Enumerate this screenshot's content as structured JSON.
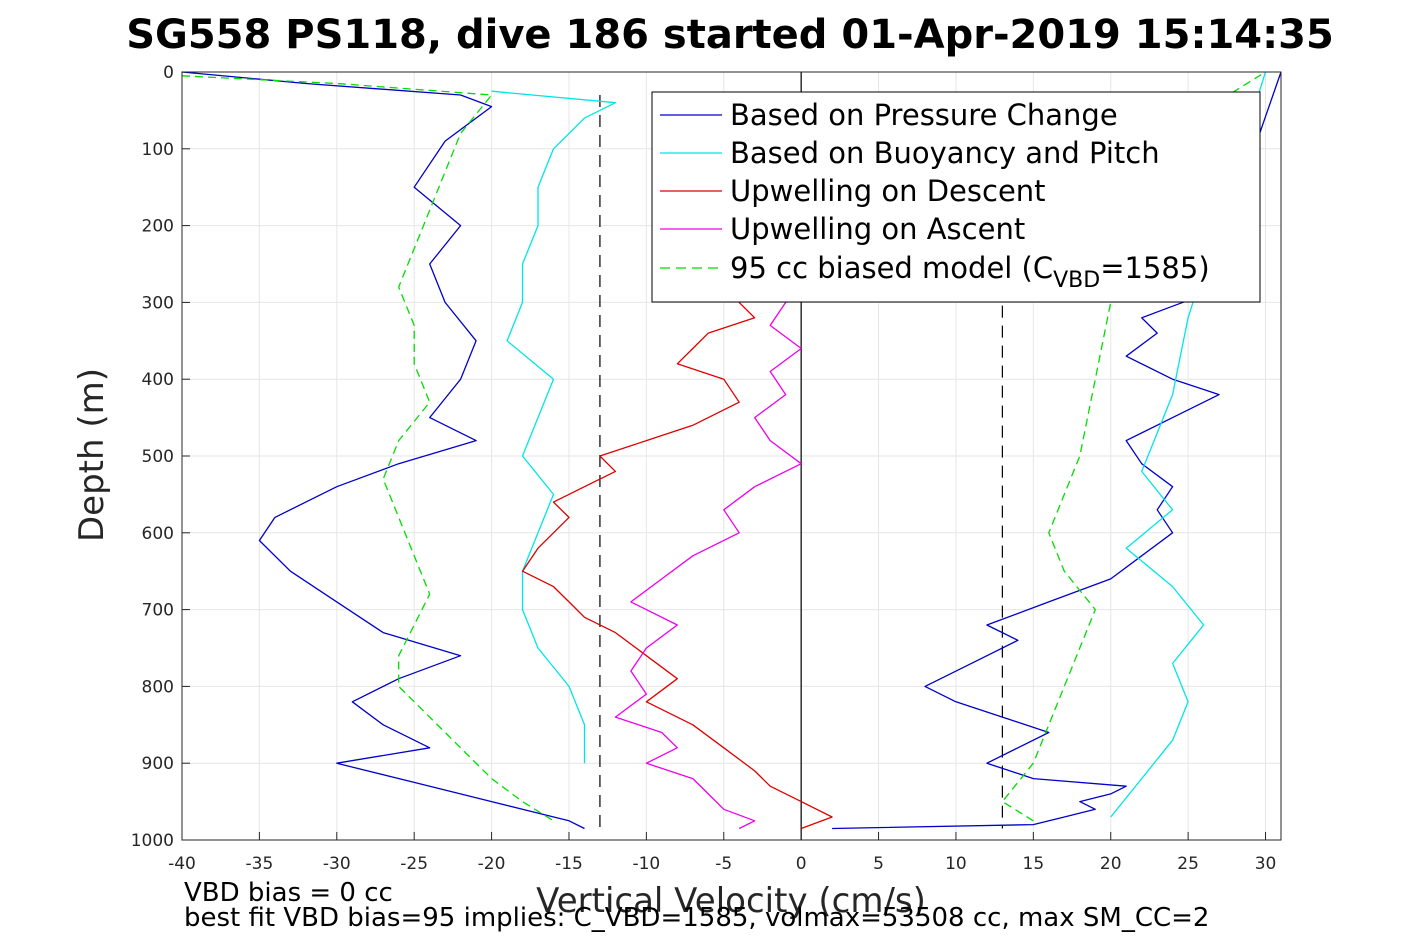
{
  "colors": {
    "pressure": "#0000cc",
    "buoyancy": "#00e5e5",
    "descent": "#e00000",
    "ascent": "#ee00ee",
    "model": "#00dd00",
    "grid": "#e6e6e6",
    "axis": "#262626",
    "reference": "#000000"
  },
  "chart_data": {
    "type": "line",
    "title": "SG558 PS118, dive 186 started 01-Apr-2019 15:14:35",
    "xlabel": "Vertical Velocity (cm/s)",
    "ylabel": "Depth (m)",
    "xlim": [
      -40,
      31
    ],
    "ylim": [
      0,
      1000
    ],
    "y_reversed": true,
    "grid": true,
    "legend_position": "top-right",
    "xticks": [
      -40,
      -35,
      -30,
      -25,
      -20,
      -15,
      -10,
      -5,
      0,
      5,
      10,
      15,
      20,
      25,
      30
    ],
    "yticks": [
      0,
      100,
      200,
      300,
      400,
      500,
      600,
      700,
      800,
      900,
      1000
    ],
    "reference_lines": [
      {
        "x": -13,
        "style": "dashed",
        "y_from": 30,
        "y_to": 985
      },
      {
        "x": 0,
        "style": "solid",
        "y_from": 0,
        "y_to": 1000
      },
      {
        "x": 13,
        "style": "dashed",
        "y_from": 200,
        "y_to": 985
      }
    ],
    "legend": [
      {
        "label": "Based on Pressure Change",
        "color_key": "pressure",
        "dash": false
      },
      {
        "label": "Based on Buoyancy and Pitch",
        "color_key": "buoyancy",
        "dash": false
      },
      {
        "label": "Upwelling on Descent",
        "color_key": "descent",
        "dash": false
      },
      {
        "label": "Upwelling on Ascent",
        "color_key": "ascent",
        "dash": false
      },
      {
        "label_main": "95 cc biased model (C",
        "label_sub": "VBD",
        "label_end": "=1585)",
        "color_key": "model",
        "dash": true
      }
    ],
    "series": [
      {
        "key": "pressure",
        "branch": "descent",
        "x": [
          -40,
          -32,
          -22,
          -20,
          -23,
          -25,
          -22,
          -24,
          -23,
          -21,
          -22,
          -24,
          -21,
          -26,
          -30,
          -34,
          -35,
          -33,
          -30,
          -27,
          -22,
          -26,
          -29,
          -27,
          -24,
          -30,
          -25,
          -20,
          -17,
          -15,
          -14
        ],
        "y": [
          0,
          15,
          30,
          45,
          90,
          150,
          200,
          250,
          300,
          350,
          400,
          450,
          480,
          510,
          540,
          580,
          610,
          650,
          690,
          730,
          760,
          790,
          820,
          850,
          880,
          900,
          925,
          950,
          965,
          975,
          985
        ]
      },
      {
        "key": "pressure",
        "branch": "ascent",
        "x": [
          2,
          15,
          17,
          19,
          18,
          20,
          21,
          15,
          12,
          14,
          16,
          13,
          10,
          8,
          11,
          14,
          12,
          16,
          20,
          22,
          24,
          23,
          24,
          22,
          21,
          24,
          27,
          24,
          21,
          23,
          22,
          24,
          26,
          31
        ],
        "y": [
          985,
          980,
          970,
          960,
          950,
          940,
          930,
          920,
          900,
          880,
          860,
          840,
          820,
          800,
          770,
          740,
          720,
          690,
          660,
          630,
          600,
          570,
          540,
          510,
          480,
          450,
          420,
          400,
          370,
          340,
          320,
          305,
          290,
          0
        ]
      },
      {
        "key": "buoyancy",
        "branch": "descent",
        "x": [
          -20,
          -12,
          -14,
          -16,
          -17,
          -17,
          -18,
          -18,
          -19,
          -16,
          -17,
          -18,
          -16,
          -17,
          -18,
          -18,
          -17,
          -15,
          -14,
          -14
        ],
        "y": [
          25,
          40,
          60,
          100,
          150,
          200,
          250,
          300,
          350,
          400,
          450,
          500,
          550,
          600,
          650,
          700,
          750,
          800,
          850,
          900
        ]
      },
      {
        "key": "buoyancy",
        "branch": "ascent",
        "x": [
          20,
          22,
          24,
          25,
          24,
          26,
          24,
          21,
          24,
          22,
          23,
          24,
          25,
          30
        ],
        "y": [
          970,
          920,
          870,
          820,
          770,
          720,
          670,
          620,
          570,
          520,
          470,
          420,
          320,
          0
        ]
      },
      {
        "key": "descent",
        "x": [
          -4,
          -3,
          -6,
          -7,
          -8,
          -5,
          -4,
          -7,
          -10,
          -13,
          -12,
          -14,
          -16,
          -15,
          -16,
          -17,
          -18,
          -16,
          -15,
          -14,
          -12,
          -10,
          -8,
          -10,
          -7,
          -5,
          -3,
          -2,
          0,
          2,
          0
        ],
        "y": [
          300,
          320,
          340,
          360,
          380,
          400,
          430,
          460,
          480,
          500,
          520,
          540,
          560,
          580,
          600,
          620,
          650,
          670,
          690,
          710,
          730,
          760,
          790,
          820,
          850,
          880,
          910,
          930,
          950,
          970,
          985
        ]
      },
      {
        "key": "ascent",
        "x": [
          -1,
          -2,
          0,
          -2,
          -1,
          -3,
          -2,
          0,
          -3,
          -5,
          -4,
          -7,
          -9,
          -11,
          -8,
          -10,
          -11,
          -10,
          -12,
          -9,
          -8,
          -10,
          -7,
          -6,
          -5,
          -3,
          -4
        ],
        "y": [
          300,
          330,
          360,
          390,
          420,
          450,
          480,
          510,
          540,
          570,
          600,
          630,
          660,
          690,
          720,
          750,
          780,
          810,
          840,
          860,
          880,
          900,
          920,
          940,
          960,
          975,
          985
        ]
      },
      {
        "key": "model",
        "branch": "descent",
        "x": [
          -40,
          -30,
          -20,
          -22,
          -23,
          -24,
          -25,
          -26,
          -25,
          -25,
          -24,
          -26,
          -27,
          -26,
          -25,
          -24,
          -25,
          -26,
          -26,
          -24,
          -22,
          -20,
          -18,
          -16
        ],
        "y": [
          5,
          15,
          30,
          80,
          130,
          180,
          230,
          280,
          330,
          380,
          430,
          480,
          530,
          580,
          630,
          680,
          720,
          760,
          800,
          840,
          880,
          920,
          950,
          975
        ]
      },
      {
        "key": "model",
        "branch": "ascent",
        "x": [
          15,
          13,
          15,
          16,
          17,
          18,
          19,
          17,
          16,
          17,
          18,
          19,
          20,
          22,
          30
        ],
        "y": [
          975,
          950,
          900,
          850,
          800,
          750,
          700,
          650,
          600,
          550,
          500,
          400,
          300,
          100,
          0
        ]
      }
    ]
  },
  "footer": {
    "line1": "VBD bias = 0 cc",
    "line2": "best fit VBD bias=95 implies: C_VBD=1585, volmax=53508 cc, max SM_CC=2"
  }
}
